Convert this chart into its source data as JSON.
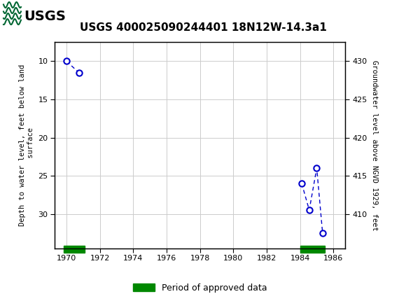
{
  "title": "USGS 400025090244401 18N12W-14.3a1",
  "header_bg": "#006633",
  "plot_bg": "#ffffff",
  "grid_color": "#cccccc",
  "line_color": "#0000cc",
  "approved_color": "#008800",
  "series1_x": [
    1970.0,
    1970.75
  ],
  "series1_y": [
    10.0,
    11.5
  ],
  "series2_x": [
    1984.1,
    1984.55,
    1985.0,
    1985.35
  ],
  "series2_y": [
    26.0,
    29.5,
    24.0,
    32.5
  ],
  "bar1_xmin": 1969.85,
  "bar1_xmax": 1971.1,
  "bar2_xmin": 1984.0,
  "bar2_xmax": 1985.5,
  "xlim": [
    1969.3,
    1986.7
  ],
  "xticks": [
    1970,
    1972,
    1974,
    1976,
    1978,
    1980,
    1982,
    1984,
    1986
  ],
  "ylim_left": [
    34.5,
    7.5
  ],
  "yticks_left": [
    10,
    15,
    20,
    25,
    30
  ],
  "ylabel_left": "Depth to water level, feet below land\n surface",
  "ylabel_right": "Groundwater level above NGVD 1929, feet",
  "ylim_right": [
    405.5,
    432.5
  ],
  "yticks_right": [
    410,
    415,
    420,
    425,
    430
  ],
  "legend_label": "Period of approved data",
  "title_fontsize": 11,
  "axis_fontsize": 7.5,
  "tick_fontsize": 8
}
